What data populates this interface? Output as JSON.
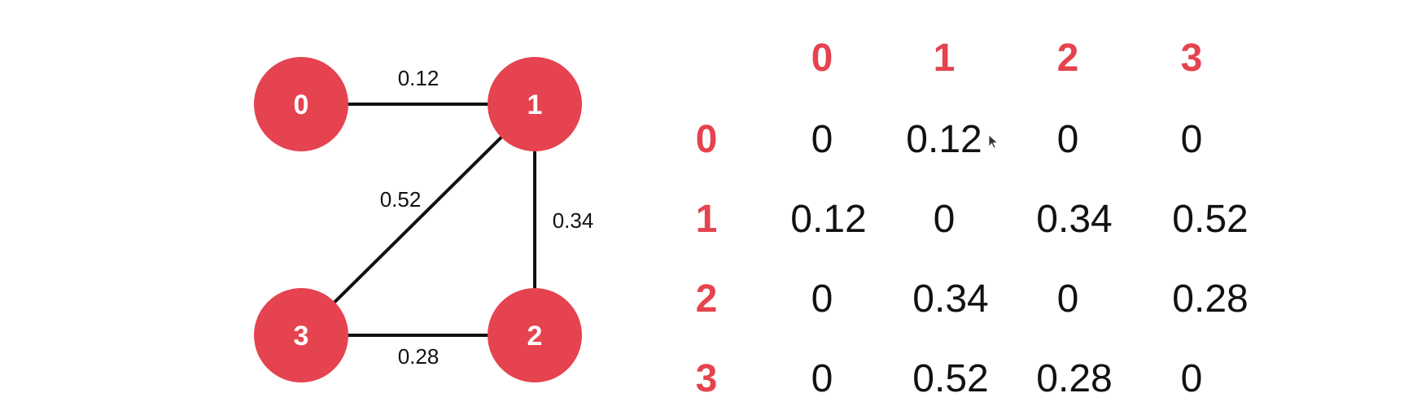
{
  "accent_color": "#e5434f",
  "graph": {
    "nodes": [
      {
        "id": "n0",
        "label": "0"
      },
      {
        "id": "n1",
        "label": "1"
      },
      {
        "id": "n2",
        "label": "2"
      },
      {
        "id": "n3",
        "label": "3"
      }
    ],
    "edges": [
      {
        "from": "0",
        "to": "1",
        "weight": "0.12"
      },
      {
        "from": "1",
        "to": "2",
        "weight": "0.34"
      },
      {
        "from": "1",
        "to": "3",
        "weight": "0.52"
      },
      {
        "from": "3",
        "to": "2",
        "weight": "0.28"
      }
    ]
  },
  "matrix": {
    "col_headers": [
      "0",
      "1",
      "2",
      "3"
    ],
    "row_headers": [
      "0",
      "1",
      "2",
      "3"
    ],
    "rows": [
      [
        "0",
        "0.12",
        "0",
        "0"
      ],
      [
        "0.12",
        "0",
        "0.34",
        "0.52"
      ],
      [
        "0",
        "0.34",
        "0",
        "0.28"
      ],
      [
        "0",
        "0.52",
        "0.28",
        "0"
      ]
    ]
  }
}
